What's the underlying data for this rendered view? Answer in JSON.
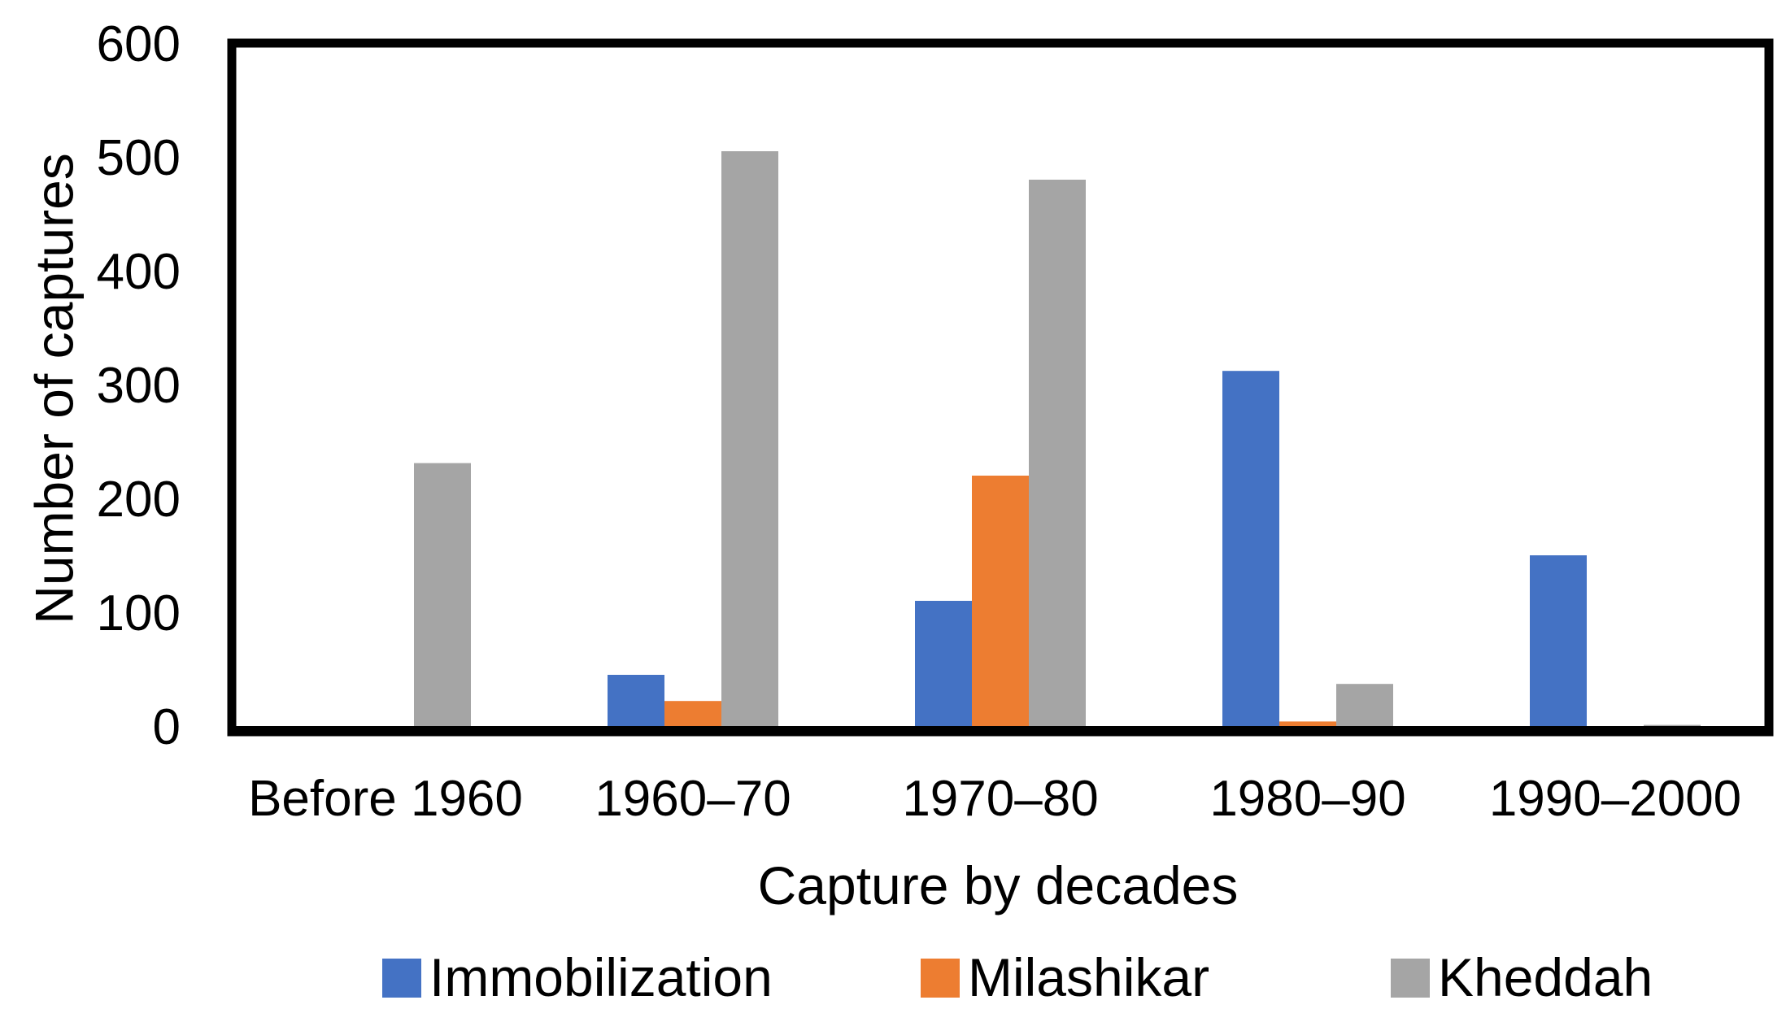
{
  "chart_data": {
    "type": "bar",
    "title": "",
    "xlabel": "Capture by decades",
    "ylabel": "Number of captures",
    "ylim": [
      0,
      600
    ],
    "yticks": [
      0,
      100,
      200,
      300,
      400,
      500,
      600
    ],
    "ytick_labels": [
      "0",
      "100",
      "200",
      "300",
      "400",
      "500",
      "600"
    ],
    "grid": false,
    "legend_position": "bottom",
    "categories": [
      "Before 1960",
      "1960–70",
      "1970–80",
      "1980–90",
      "1990–2000"
    ],
    "series": [
      {
        "name": "Immobilization",
        "color": "#4472C4",
        "values": [
          0,
          45,
          110,
          312,
          150
        ]
      },
      {
        "name": "Milashikar",
        "color": "#ED7D31",
        "values": [
          0,
          22,
          220,
          4,
          0
        ]
      },
      {
        "name": "Kheddah",
        "color": "#A5A5A5",
        "values": [
          231,
          505,
          480,
          37,
          1
        ]
      }
    ]
  }
}
